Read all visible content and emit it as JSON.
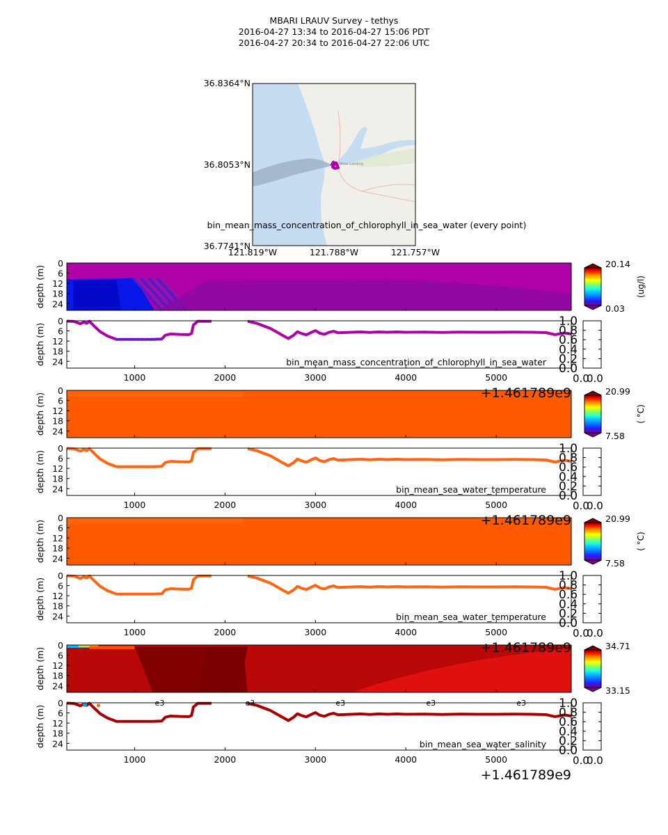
{
  "header": {
    "title": "MBARI LRAUV Survey - tethys",
    "time_pdt": "2016-04-27 13:34  to  2016-04-27 15:06 PDT",
    "time_utc": "2016-04-27 20:34  to  2016-04-27 22:06 UTC"
  },
  "map": {
    "lat_labels": [
      "36.8364°N",
      "36.8053°N",
      "36.7741°N"
    ],
    "lon_labels": [
      "121.819°W",
      "121.788°W",
      "121.757°W"
    ],
    "place_label": "Moss Landing",
    "caption": "bin_mean_mass_concentration_of_chlorophyll_in_sea_water (every point)",
    "track_color": "#b000a8"
  },
  "axes_common": {
    "ylabel": "depth (m)",
    "yticks": [
      "0",
      "6",
      "12",
      "18",
      "24"
    ],
    "xticks": [
      "1000",
      "2000",
      "3000",
      "4000",
      "5000"
    ],
    "xticks_values": [
      1000,
      2000,
      3000,
      4000,
      5000
    ],
    "xrange": [
      250,
      5830
    ],
    "yrange": [
      0,
      28
    ],
    "offset_label": "+1.461789e9",
    "rightaxis_ticks": [
      "0.0",
      "0.2",
      "0.4",
      "0.6",
      "0.8",
      "1.0"
    ],
    "overlap_text": "0.0",
    "overlap_tail": "0.0",
    "overlap_glyph": "e3"
  },
  "chart_data": [
    {
      "type": "heatmap",
      "variable": "chlorophyll",
      "colorbar_max": "20.14",
      "colorbar_min": "0.03",
      "units": "(ug/l)",
      "background_color": "#b000a8",
      "lower_color": "#8a0aa0"
    },
    {
      "type": "line",
      "title": "bin_mean_mass_concentration_of_chlorophyll_in_sea_water",
      "color": "#b000a8",
      "x": [
        250,
        330,
        400,
        440,
        470,
        500,
        560,
        620,
        700,
        800,
        900,
        1000,
        1100,
        1200,
        1300,
        1340,
        1400,
        1500,
        1600,
        1630,
        1650,
        1700,
        1800,
        1850,
        2250,
        2350,
        2500,
        2600,
        2700,
        2760,
        2800,
        2850,
        2900,
        2950,
        3000,
        3050,
        3100,
        3150,
        3200,
        3250,
        3300,
        3400,
        3500,
        3600,
        3700,
        3800,
        3900,
        4000,
        4200,
        4400,
        4600,
        4800,
        5000,
        5200,
        5400,
        5550,
        5650,
        5750,
        5830
      ],
      "y": [
        0.2,
        0.4,
        1.8,
        0.8,
        1.5,
        0.3,
        3.5,
        6.5,
        9,
        11,
        11,
        11,
        11,
        11,
        10.8,
        8.5,
        7.8,
        8.1,
        8.2,
        7.5,
        2.5,
        0.3,
        0.3,
        0.3,
        0.3,
        1.5,
        4.5,
        7.5,
        10.5,
        8.5,
        6.5,
        7.6,
        8.3,
        7.0,
        5.8,
        7.4,
        8.0,
        6.8,
        6.2,
        7.1,
        7.0,
        6.8,
        6.6,
        6.9,
        6.6,
        6.8,
        6.6,
        6.8,
        6.7,
        6.9,
        6.7,
        6.8,
        6.8,
        6.7,
        6.8,
        7.0,
        8.2,
        7.2,
        7.8
      ]
    },
    {
      "type": "heatmap",
      "variable": "temperature",
      "colorbar_max": "20.99",
      "colorbar_min": "7.58",
      "units": "( °C)",
      "background_color": "#ff5a00"
    },
    {
      "type": "line",
      "title": "bin_mean_sea_water_temperature",
      "color": "#ff6410",
      "x": [
        250,
        330,
        400,
        440,
        470,
        500,
        560,
        620,
        700,
        800,
        900,
        1000,
        1100,
        1200,
        1300,
        1340,
        1400,
        1500,
        1600,
        1630,
        1650,
        1700,
        1800,
        1850,
        2250,
        2350,
        2500,
        2600,
        2700,
        2760,
        2800,
        2850,
        2900,
        2950,
        3000,
        3050,
        3100,
        3150,
        3200,
        3250,
        3300,
        3400,
        3500,
        3600,
        3700,
        3800,
        3900,
        4000,
        4200,
        4400,
        4600,
        4800,
        5000,
        5200,
        5400,
        5550,
        5650,
        5750,
        5830
      ],
      "y": [
        0.2,
        0.4,
        1.8,
        0.8,
        1.5,
        0.3,
        3.5,
        6.5,
        9,
        11,
        11,
        11,
        11,
        11,
        10.8,
        8.5,
        7.8,
        8.1,
        8.2,
        7.5,
        2.5,
        0.3,
        0.3,
        0.3,
        0.3,
        1.5,
        4.5,
        7.5,
        10.5,
        8.5,
        6.5,
        7.6,
        8.3,
        7.0,
        5.8,
        7.4,
        8.0,
        6.8,
        6.2,
        7.1,
        7.0,
        6.8,
        6.6,
        6.9,
        6.6,
        6.8,
        6.6,
        6.8,
        6.7,
        6.9,
        6.7,
        6.8,
        6.8,
        6.7,
        6.8,
        7.0,
        8.2,
        7.2,
        7.8
      ]
    },
    {
      "type": "heatmap",
      "variable": "temperature",
      "colorbar_max": "20.99",
      "colorbar_min": "7.58",
      "units": "( °C)",
      "background_color": "#ff5a00"
    },
    {
      "type": "line",
      "title": "bin_mean_sea_water_temperature",
      "color": "#ff6410",
      "x": [
        250,
        330,
        400,
        440,
        470,
        500,
        560,
        620,
        700,
        800,
        900,
        1000,
        1100,
        1200,
        1300,
        1340,
        1400,
        1500,
        1600,
        1630,
        1650,
        1700,
        1800,
        1850,
        2250,
        2350,
        2500,
        2600,
        2700,
        2760,
        2800,
        2850,
        2900,
        2950,
        3000,
        3050,
        3100,
        3150,
        3200,
        3250,
        3300,
        3400,
        3500,
        3600,
        3700,
        3800,
        3900,
        4000,
        4200,
        4400,
        4600,
        4800,
        5000,
        5200,
        5400,
        5550,
        5650,
        5750,
        5830
      ],
      "y": [
        0.2,
        0.4,
        1.8,
        0.8,
        1.5,
        0.3,
        3.5,
        6.5,
        9,
        11,
        11,
        11,
        11,
        11,
        10.8,
        8.5,
        7.8,
        8.1,
        8.2,
        7.5,
        2.5,
        0.3,
        0.3,
        0.3,
        0.3,
        1.5,
        4.5,
        7.5,
        10.5,
        8.5,
        6.5,
        7.6,
        8.3,
        7.0,
        5.8,
        7.4,
        8.0,
        6.8,
        6.2,
        7.1,
        7.0,
        6.8,
        6.6,
        6.9,
        6.6,
        6.8,
        6.6,
        6.8,
        6.7,
        6.9,
        6.7,
        6.8,
        6.8,
        6.7,
        6.8,
        7.0,
        8.2,
        7.2,
        7.8
      ]
    },
    {
      "type": "heatmap",
      "variable": "salinity",
      "colorbar_max": "34.71",
      "colorbar_min": "33.15",
      "units": "",
      "background_color": "#b80808"
    },
    {
      "type": "line",
      "title": "bin_mean_sea_water_salinity",
      "color": "#a80000",
      "x": [
        250,
        330,
        400,
        440,
        470,
        500,
        560,
        620,
        700,
        800,
        900,
        1000,
        1100,
        1200,
        1300,
        1340,
        1400,
        1500,
        1600,
        1630,
        1650,
        1700,
        1800,
        1850,
        2250,
        2350,
        2500,
        2600,
        2700,
        2760,
        2800,
        2850,
        2900,
        2950,
        3000,
        3050,
        3100,
        3150,
        3200,
        3250,
        3300,
        3400,
        3500,
        3600,
        3700,
        3800,
        3900,
        4000,
        4200,
        4400,
        4600,
        4800,
        5000,
        5200,
        5400,
        5550,
        5650,
        5750,
        5830
      ],
      "y": [
        0.2,
        0.4,
        1.8,
        0.8,
        1.5,
        0.3,
        3.5,
        6.5,
        9,
        11,
        11,
        11,
        11,
        11,
        10.8,
        8.5,
        7.8,
        8.1,
        8.2,
        7.5,
        2.5,
        0.3,
        0.3,
        0.3,
        0.3,
        1.5,
        4.5,
        7.5,
        10.5,
        8.5,
        6.5,
        7.6,
        8.3,
        7.0,
        5.8,
        7.4,
        8.0,
        6.8,
        6.2,
        7.1,
        7.0,
        6.8,
        6.6,
        6.9,
        6.6,
        6.8,
        6.6,
        6.8,
        6.7,
        6.9,
        6.7,
        6.8,
        6.8,
        6.7,
        6.8,
        7.0,
        8.2,
        7.2,
        7.8
      ]
    }
  ],
  "colors": {
    "jet_top": "#7a0000",
    "jet_bottom": "#7a0090"
  }
}
